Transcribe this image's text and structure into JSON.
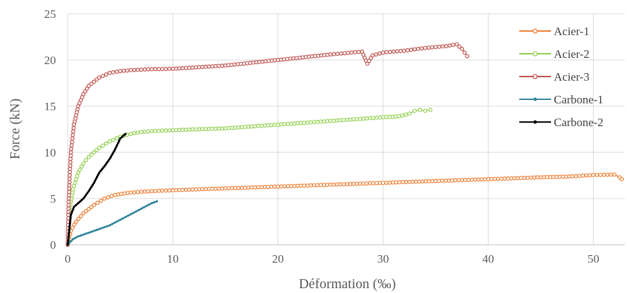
{
  "chart_data": {
    "type": "line",
    "title": "",
    "xlabel": "Déformation (‰)",
    "ylabel": "Force (kN)",
    "xlim": [
      0,
      53
    ],
    "ylim": [
      0,
      25
    ],
    "x_ticks": [
      0,
      10,
      20,
      30,
      40,
      50
    ],
    "y_ticks": [
      0,
      5,
      10,
      15,
      20,
      25
    ],
    "grid": "vertical and horizontal",
    "legend": "right",
    "series": [
      {
        "name": "Acier-1",
        "color": "#ED7D31",
        "marker": "hollow-circle",
        "x": [
          0,
          0.3,
          0.8,
          1.5,
          2.5,
          3.5,
          4.5,
          6,
          8,
          10,
          15,
          20,
          25,
          30,
          35,
          40,
          45,
          48,
          50,
          52,
          52.5,
          52.7
        ],
        "y": [
          0,
          1.5,
          2.5,
          3.4,
          4.3,
          5.0,
          5.4,
          5.65,
          5.8,
          5.9,
          6.1,
          6.3,
          6.5,
          6.7,
          6.9,
          7.1,
          7.3,
          7.4,
          7.55,
          7.6,
          7.3,
          7.1
        ]
      },
      {
        "name": "Acier-2",
        "color": "#92D050",
        "marker": "hollow-circle",
        "x": [
          0,
          0.2,
          0.5,
          1,
          1.5,
          2,
          3,
          4,
          5,
          6,
          7,
          8,
          10,
          15,
          20,
          25,
          30,
          31.5,
          32.5,
          33,
          33.5,
          34,
          34.5
        ],
        "y": [
          0,
          4.0,
          6.0,
          7.8,
          8.8,
          9.5,
          10.5,
          11.2,
          11.7,
          12.0,
          12.2,
          12.3,
          12.4,
          12.6,
          13.0,
          13.4,
          13.8,
          13.9,
          14.2,
          14.5,
          14.6,
          14.5,
          14.6
        ]
      },
      {
        "name": "Acier-3",
        "color": "#C0504D",
        "marker": "hollow-circle",
        "x": [
          0,
          0.1,
          0.3,
          0.6,
          1,
          1.5,
          2,
          3,
          4,
          5,
          6,
          8,
          10,
          15,
          20,
          25,
          27,
          28,
          28.5,
          29,
          30,
          32,
          34,
          36,
          37,
          37.5,
          38
        ],
        "y": [
          0,
          5,
          10,
          13,
          15,
          16.3,
          17.2,
          18.1,
          18.6,
          18.8,
          18.9,
          19.0,
          19.05,
          19.4,
          20.0,
          20.6,
          20.8,
          20.9,
          19.6,
          20.5,
          20.8,
          21.0,
          21.3,
          21.5,
          21.7,
          21.2,
          20.4
        ]
      },
      {
        "name": "Carbone-1",
        "color": "#31859C",
        "marker": "dot",
        "x": [
          0,
          0.5,
          1,
          1.5,
          2,
          2.5,
          3,
          3.5,
          4,
          4.5,
          5,
          5.5,
          6,
          6.5,
          7,
          7.5,
          8,
          8.5
        ],
        "y": [
          0,
          0.6,
          0.9,
          1.1,
          1.3,
          1.5,
          1.7,
          1.9,
          2.1,
          2.4,
          2.7,
          3.0,
          3.3,
          3.6,
          3.9,
          4.2,
          4.5,
          4.7
        ]
      },
      {
        "name": "Carbone-2",
        "color": "#000000",
        "marker": "dot",
        "x": [
          0,
          0.3,
          0.6,
          1,
          1.5,
          2,
          2.5,
          3,
          3.5,
          4,
          4.5,
          5,
          5.5
        ],
        "y": [
          0,
          3.2,
          4.1,
          4.5,
          5.0,
          5.8,
          6.7,
          7.8,
          8.5,
          9.3,
          10.3,
          11.5,
          12.0
        ]
      }
    ]
  }
}
